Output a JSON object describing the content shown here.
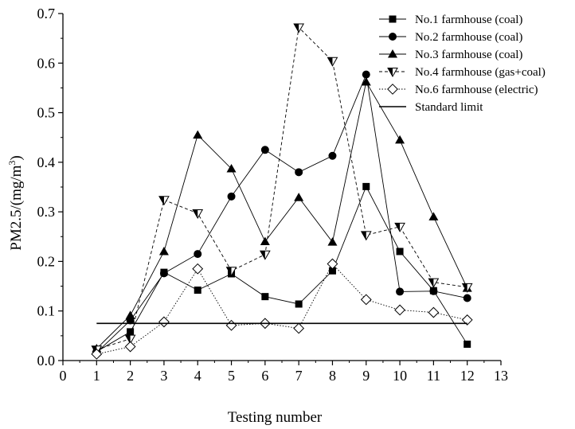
{
  "chart_data": {
    "type": "line",
    "title": "",
    "xlabel": "Testing number",
    "ylabel": "PM2.5/(mg/m³)",
    "ylabel_parts": {
      "main": "PM2.5/(mg/m",
      "sup": "3",
      "close": ")"
    },
    "xlim": [
      0,
      13
    ],
    "ylim": [
      0,
      0.7
    ],
    "xticks": [
      0,
      1,
      2,
      3,
      4,
      5,
      6,
      7,
      8,
      9,
      10,
      11,
      12,
      13
    ],
    "yticks": [
      0.0,
      0.1,
      0.2,
      0.3,
      0.4,
      0.5,
      0.6,
      0.7
    ],
    "ytick_labels": [
      "0.0",
      "0.1",
      "0.2",
      "0.3",
      "0.4",
      "0.5",
      "0.6",
      "0.7"
    ],
    "grid": false,
    "legend_position": "top-right",
    "x": [
      1,
      2,
      3,
      4,
      5,
      6,
      7,
      8,
      9,
      10,
      11,
      12
    ],
    "series": [
      {
        "name": "No.1 farmhouse (coal)",
        "marker": "square",
        "line": "solid",
        "values": [
          0.018,
          0.058,
          0.178,
          0.142,
          0.175,
          0.129,
          0.114,
          0.181,
          0.351,
          0.22,
          0.141,
          0.033
        ]
      },
      {
        "name": "No.2 farmhouse (coal)",
        "marker": "circle",
        "line": "solid",
        "values": [
          0.016,
          0.081,
          0.176,
          0.215,
          0.331,
          0.425,
          0.38,
          0.413,
          0.577,
          0.139,
          0.14,
          0.126
        ]
      },
      {
        "name": "No.3 farmhouse (coal)",
        "marker": "triangle-up",
        "line": "solid",
        "values": [
          0.024,
          0.091,
          0.22,
          0.455,
          0.387,
          0.24,
          0.329,
          0.239,
          0.562,
          0.445,
          0.29,
          0.146
        ]
      },
      {
        "name": "No.4 farmhouse (gas+coal)",
        "marker": "triangle-down",
        "line": "dashed",
        "values": [
          0.022,
          0.044,
          0.324,
          0.297,
          0.181,
          0.214,
          0.672,
          0.604,
          0.253,
          0.27,
          0.158,
          0.148
        ]
      },
      {
        "name": "No.6 farmhouse (electric)",
        "marker": "diamond",
        "line": "dotted",
        "values": [
          0.013,
          0.028,
          0.078,
          0.185,
          0.071,
          0.075,
          0.065,
          0.195,
          0.123,
          0.102,
          0.097,
          0.082
        ]
      }
    ],
    "reference_line": {
      "name": "Standard limit",
      "y": 0.075,
      "x_range": [
        1,
        12
      ]
    },
    "colors": {
      "axis": "#000000",
      "line": "#000000",
      "marker_fill": "#000000",
      "hollow_fill": "#ffffff"
    }
  }
}
